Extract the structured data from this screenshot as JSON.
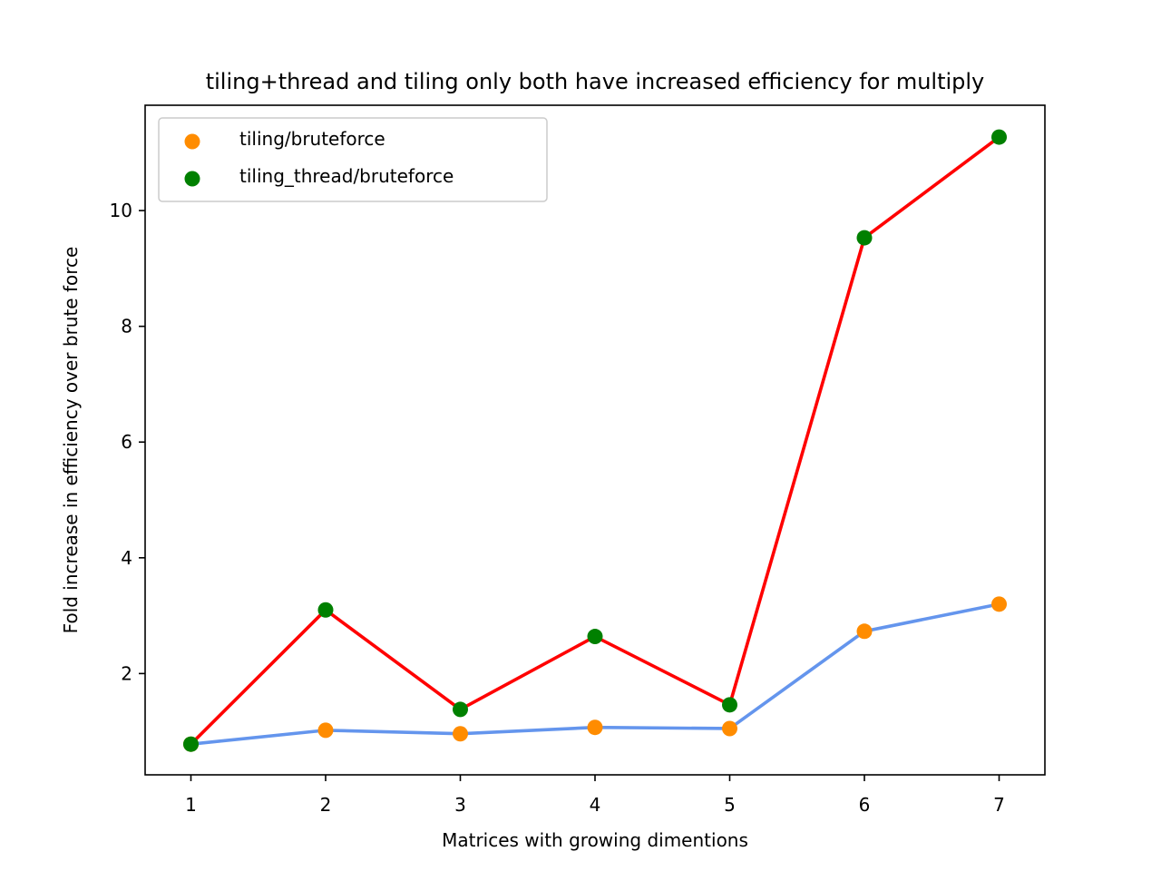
{
  "chart_data": {
    "type": "scatter",
    "title": "tiling+thread and tiling only both have increased efficiency for multiply",
    "xlabel": "Matrices with growing dimentions",
    "ylabel": "Fold increase in efficiency over brute force",
    "x": [
      1,
      2,
      3,
      4,
      5,
      6,
      7
    ],
    "xlim": [
      0.66,
      7.34
    ],
    "ylim": [
      0.25,
      11.82
    ],
    "xticks": [
      "1",
      "2",
      "3",
      "4",
      "5",
      "6",
      "7"
    ],
    "yticks": [
      "2",
      "4",
      "6",
      "8",
      "10"
    ],
    "grid": false,
    "legend_position": "upper-left",
    "series": [
      {
        "name": "tiling/bruteforce",
        "values": [
          0.78,
          1.02,
          0.96,
          1.07,
          1.05,
          2.73,
          3.2
        ],
        "marker_color": "#ff8c00",
        "line_color": "#6495ed"
      },
      {
        "name": "tiling_thread/bruteforce",
        "values": [
          0.78,
          3.1,
          1.38,
          2.64,
          1.46,
          9.53,
          11.27
        ],
        "marker_color": "#008000",
        "line_color": "#ff0000"
      }
    ]
  }
}
